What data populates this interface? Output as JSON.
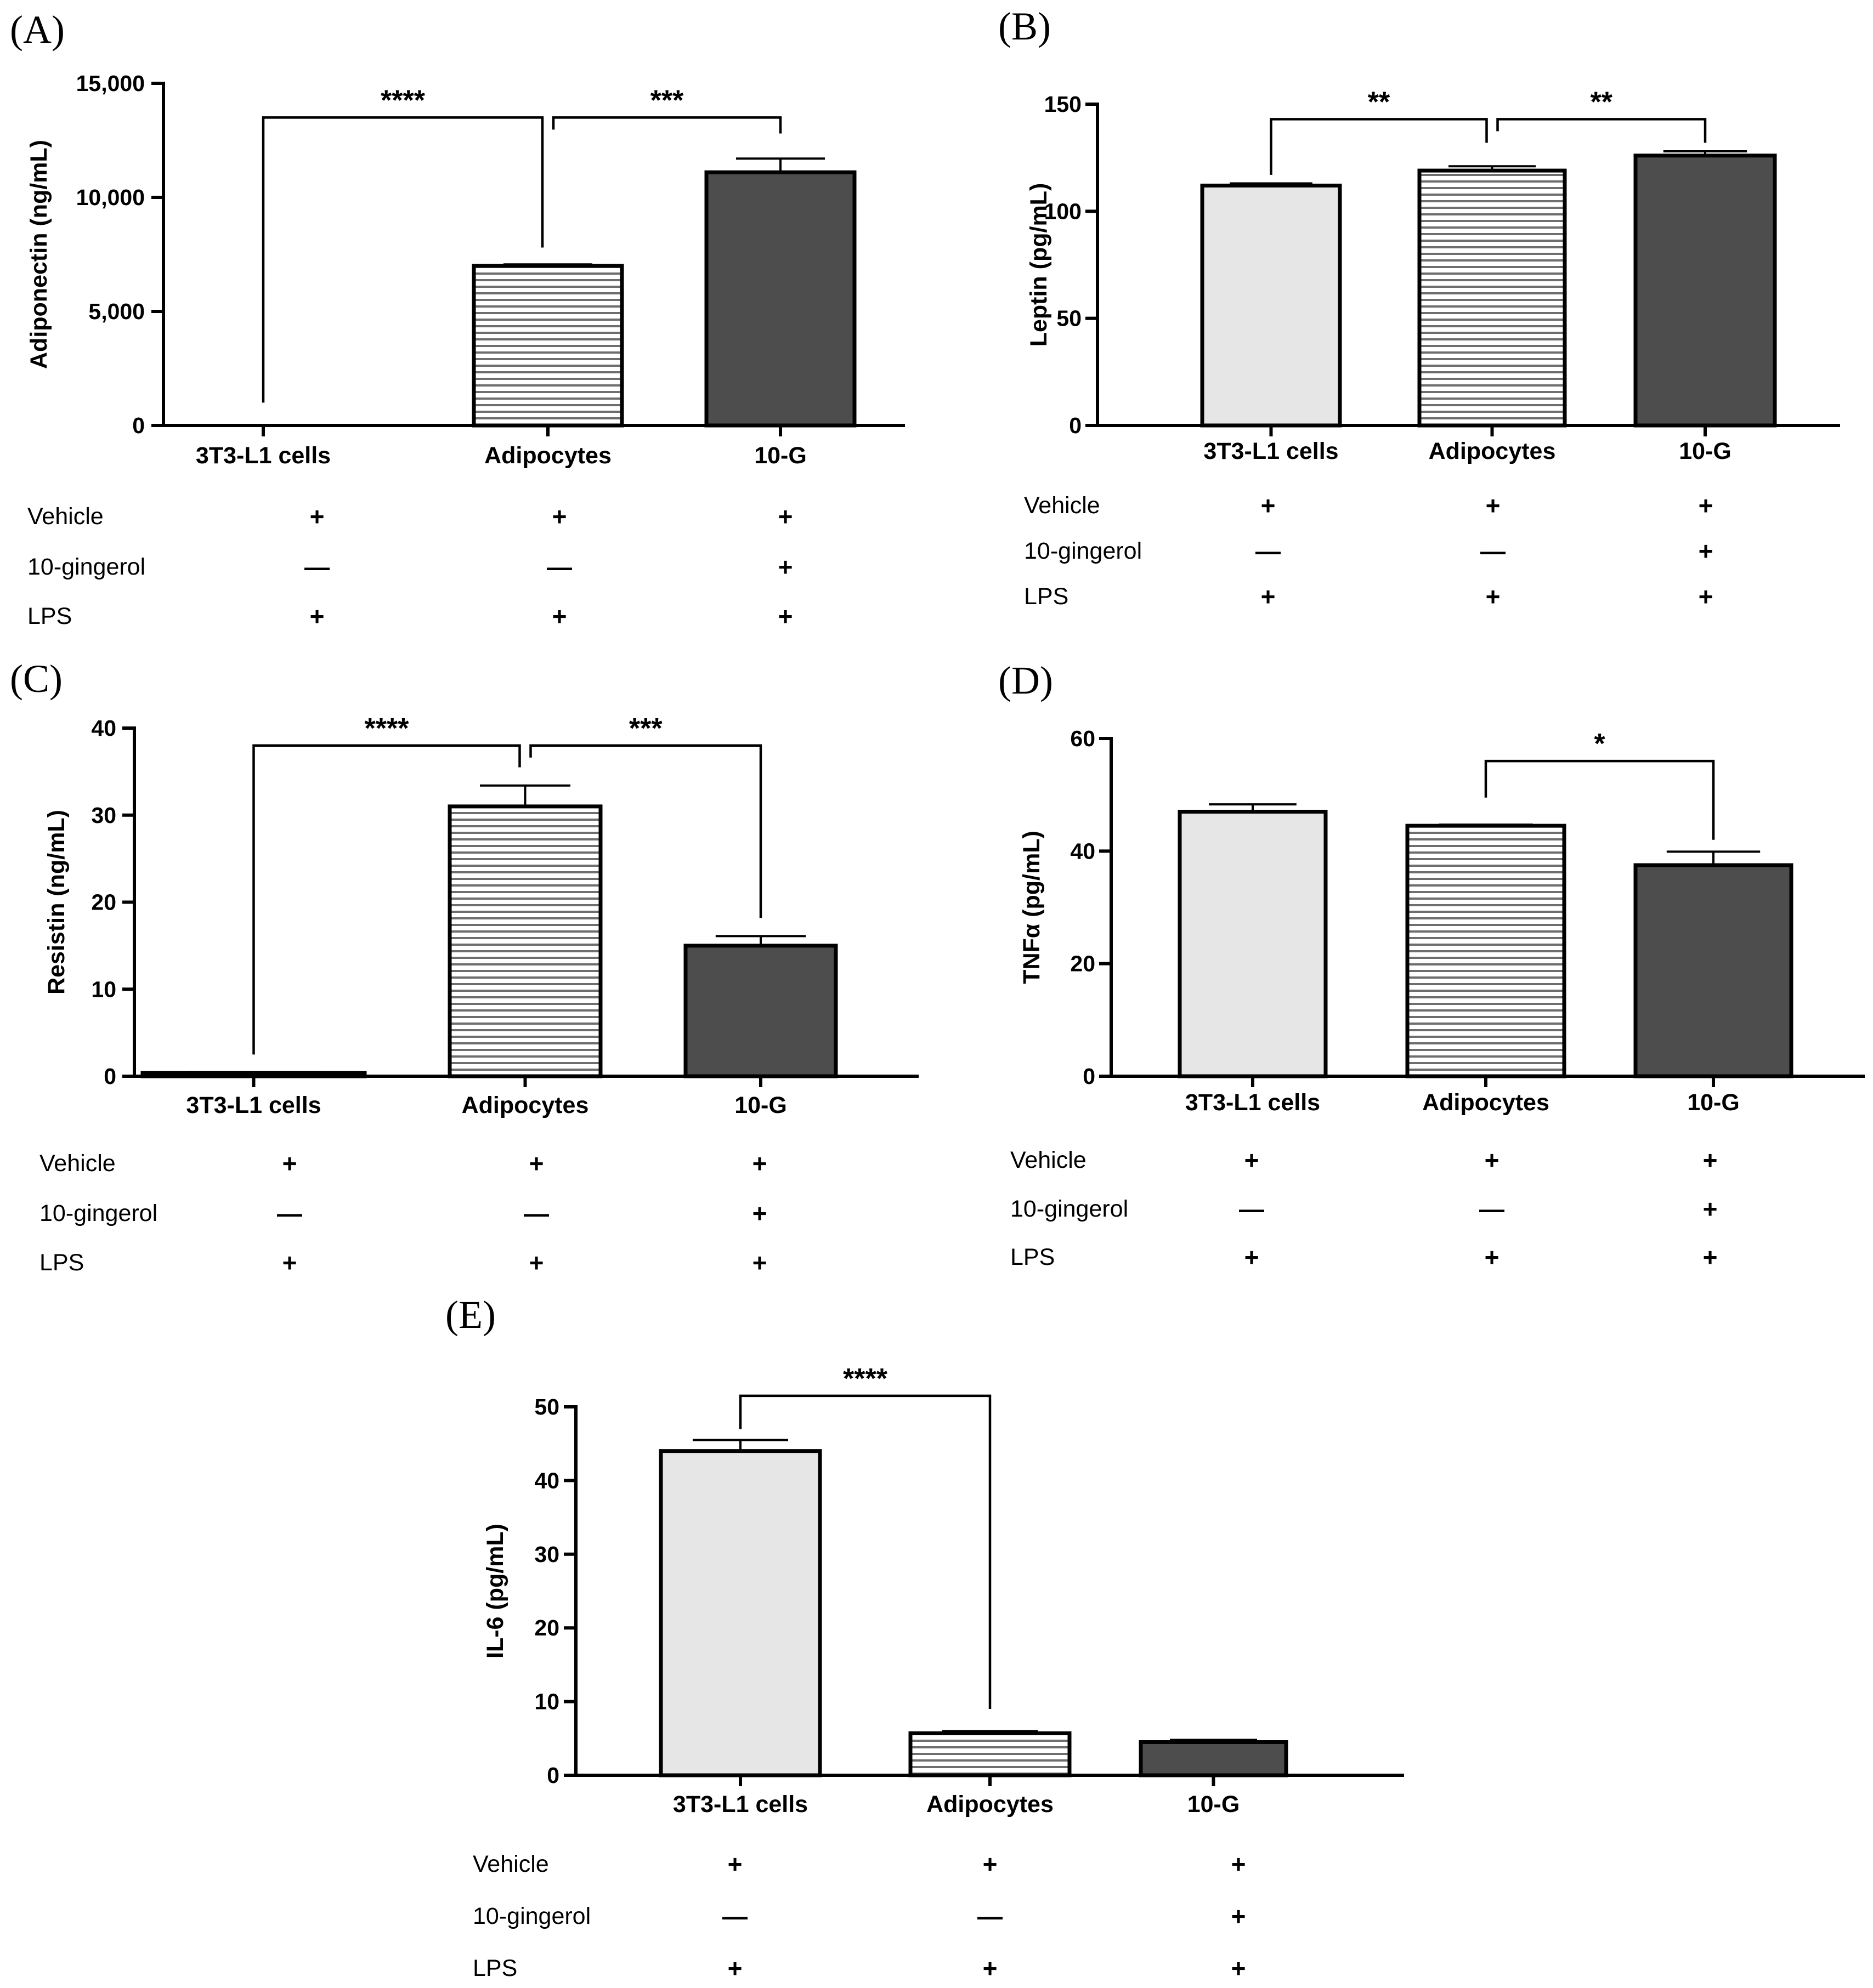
{
  "colors": {
    "light": "#e6e6e6",
    "dark": "#4d4d4d",
    "stripe_bg": "#ffffff",
    "stripe_line": "#6e6e6e",
    "axis": "#000000"
  },
  "treatment_rows": [
    "Vehicle",
    "10-gingerol",
    "LPS"
  ],
  "chart_data": [
    {
      "type": "bar",
      "panel": "(A)",
      "ylabel": "Adiponectin (ng/mL)",
      "categories": [
        "3T3-L1 cells",
        "Adipocytes",
        "10-G"
      ],
      "values": [
        0,
        7000,
        11100
      ],
      "errors": [
        0,
        60,
        600
      ],
      "ylim": [
        0,
        15000
      ],
      "yticks": [
        0,
        5000,
        10000,
        15000
      ],
      "yticklabels": [
        "0",
        "5,000",
        "10,000",
        "15,000"
      ],
      "fills": [
        "light",
        "striped",
        "dark"
      ],
      "brackets": [
        {
          "from": 0,
          "to": 1,
          "label": "****",
          "level": 13500,
          "drop_from": 1000,
          "drop_to": 7800
        },
        {
          "from": 1,
          "to": 2,
          "label": "***",
          "level": 13500,
          "drop_to": 12800
        }
      ],
      "treatments": {
        "Vehicle": [
          "+",
          "+",
          "+"
        ],
        "10-gingerol": [
          "—",
          "—",
          "+"
        ],
        "LPS": [
          "+",
          "+",
          "+"
        ]
      }
    },
    {
      "type": "bar",
      "panel": "(B)",
      "ylabel": "Leptin (pg/mL)",
      "categories": [
        "3T3-L1 cells",
        "Adipocytes",
        "10-G"
      ],
      "values": [
        112,
        119,
        126
      ],
      "errors": [
        1,
        2,
        2
      ],
      "ylim": [
        0,
        150
      ],
      "yticks": [
        0,
        50,
        100,
        150
      ],
      "yticklabels": [
        "0",
        "50",
        "100",
        "150"
      ],
      "fills": [
        "light",
        "striped",
        "dark"
      ],
      "brackets": [
        {
          "from": 0,
          "to": 1,
          "label": "**",
          "level": 143,
          "drop_from": 117,
          "drop_to": 132
        },
        {
          "from": 1,
          "to": 2,
          "label": "**",
          "level": 143,
          "drop_to": 132
        }
      ],
      "treatments": {
        "Vehicle": [
          "+",
          "+",
          "+"
        ],
        "10-gingerol": [
          "—",
          "—",
          "+"
        ],
        "LPS": [
          "+",
          "+",
          "+"
        ]
      }
    },
    {
      "type": "bar",
      "panel": "(C)",
      "ylabel": "Resistin (ng/mL)",
      "categories": [
        "3T3-L1 cells",
        "Adipocytes",
        "10-G"
      ],
      "values": [
        0.4,
        31,
        15
      ],
      "errors": [
        0.1,
        2.4,
        1.1
      ],
      "ylim": [
        0,
        40
      ],
      "yticks": [
        0,
        10,
        20,
        30,
        40
      ],
      "yticklabels": [
        "0",
        "10",
        "20",
        "30",
        "40"
      ],
      "fills": [
        "light",
        "striped",
        "dark"
      ],
      "brackets": [
        {
          "from": 0,
          "to": 1,
          "label": "****",
          "level": 38,
          "drop_from": 2.5,
          "drop_to": 35.5
        },
        {
          "from": 1,
          "to": 2,
          "label": "***",
          "level": 38,
          "drop_to": 18.2
        }
      ],
      "treatments": {
        "Vehicle": [
          "+",
          "+",
          "+"
        ],
        "10-gingerol": [
          "—",
          "—",
          "+"
        ],
        "LPS": [
          "+",
          "+",
          "+"
        ]
      }
    },
    {
      "type": "bar",
      "panel": "(D)",
      "ylabel": "TNFα (pg/mL)",
      "categories": [
        "3T3-L1 cells",
        "Adipocytes",
        "10-G"
      ],
      "values": [
        47,
        44.5,
        37.5
      ],
      "errors": [
        1.3,
        0.2,
        2.4
      ],
      "ylim": [
        0,
        60
      ],
      "yticks": [
        0,
        20,
        40,
        60
      ],
      "yticklabels": [
        "0",
        "20",
        "40",
        "60"
      ],
      "fills": [
        "light",
        "striped",
        "dark"
      ],
      "brackets": [
        {
          "from": 1,
          "to": 2,
          "label": "*",
          "level": 56,
          "drop_from": 49.5,
          "drop_to": 42
        }
      ],
      "treatments": {
        "Vehicle": [
          "+",
          "+",
          "+"
        ],
        "10-gingerol": [
          "—",
          "—",
          "+"
        ],
        "LPS": [
          "+",
          "+",
          "+"
        ]
      }
    },
    {
      "type": "bar",
      "panel": "(E)",
      "ylabel": "IL-6 (pg/mL)",
      "categories": [
        "3T3-L1 cells",
        "Adipocytes",
        "10-G"
      ],
      "values": [
        44,
        5.7,
        4.5
      ],
      "errors": [
        1.5,
        0.3,
        0.3
      ],
      "ylim": [
        0,
        50
      ],
      "yticks": [
        0,
        10,
        20,
        30,
        40,
        50
      ],
      "yticklabels": [
        "0",
        "10",
        "20",
        "30",
        "40",
        "50"
      ],
      "fills": [
        "light",
        "striped",
        "dark"
      ],
      "brackets": [
        {
          "from": 0,
          "to": 1,
          "label": "****",
          "level": 51.5,
          "drop_from": 47,
          "drop_to": 9
        }
      ],
      "treatments": {
        "Vehicle": [
          "+",
          "+",
          "+"
        ],
        "10-gingerol": [
          "—",
          "—",
          "+"
        ],
        "LPS": [
          "+",
          "+",
          "+"
        ]
      }
    }
  ]
}
